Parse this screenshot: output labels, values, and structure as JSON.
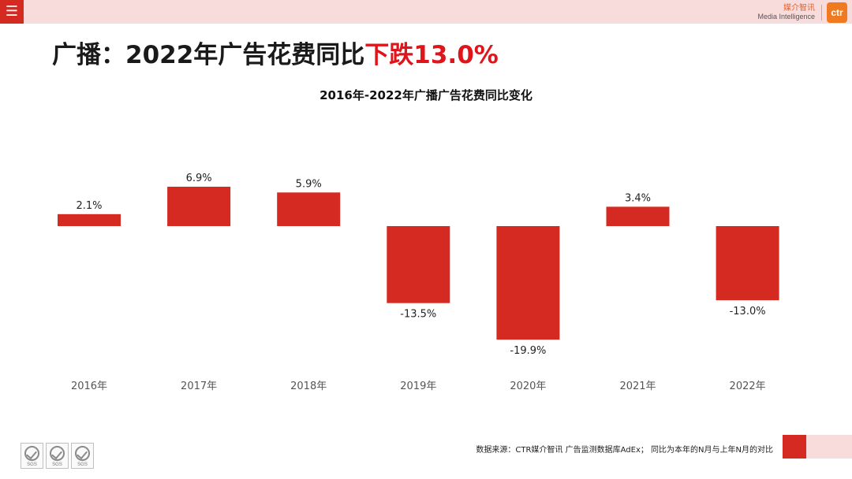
{
  "header": {
    "menu_icon": "hamburger-menu-icon",
    "brand_cn": "媒介智讯",
    "brand_en": "Media Intelligence",
    "brand_logo": "ctr"
  },
  "headline": {
    "prefix": "广播：2022年广告花费同比",
    "highlight": "下跌13.0%"
  },
  "colors": {
    "accent_red": "#d42a22",
    "headline_red": "#e0141b",
    "band_pink": "#f8dcdc",
    "brand_orange": "#ef7a1f"
  },
  "chart_data": {
    "type": "bar",
    "title": "2016年-2022年广播广告花费同比变化",
    "categories": [
      "2016年",
      "2017年",
      "2018年",
      "2019年",
      "2020年",
      "2021年",
      "2022年"
    ],
    "values": [
      2.1,
      6.9,
      5.9,
      -13.5,
      -19.9,
      3.4,
      -13.0
    ],
    "data_labels": [
      "2.1%",
      "6.9%",
      "5.9%",
      "-13.5%",
      "-19.9%",
      "3.4%",
      "-13.0%"
    ],
    "unit": "%",
    "bar_color": "#d42a22",
    "grid": false,
    "legend": "none"
  },
  "footer": {
    "source": "数据来源：CTR媒介智讯 广告监测数据库AdEx； 同比为本年的N月与上年N月的对比",
    "badges": [
      "SGS",
      "SGS",
      "SGS"
    ]
  }
}
